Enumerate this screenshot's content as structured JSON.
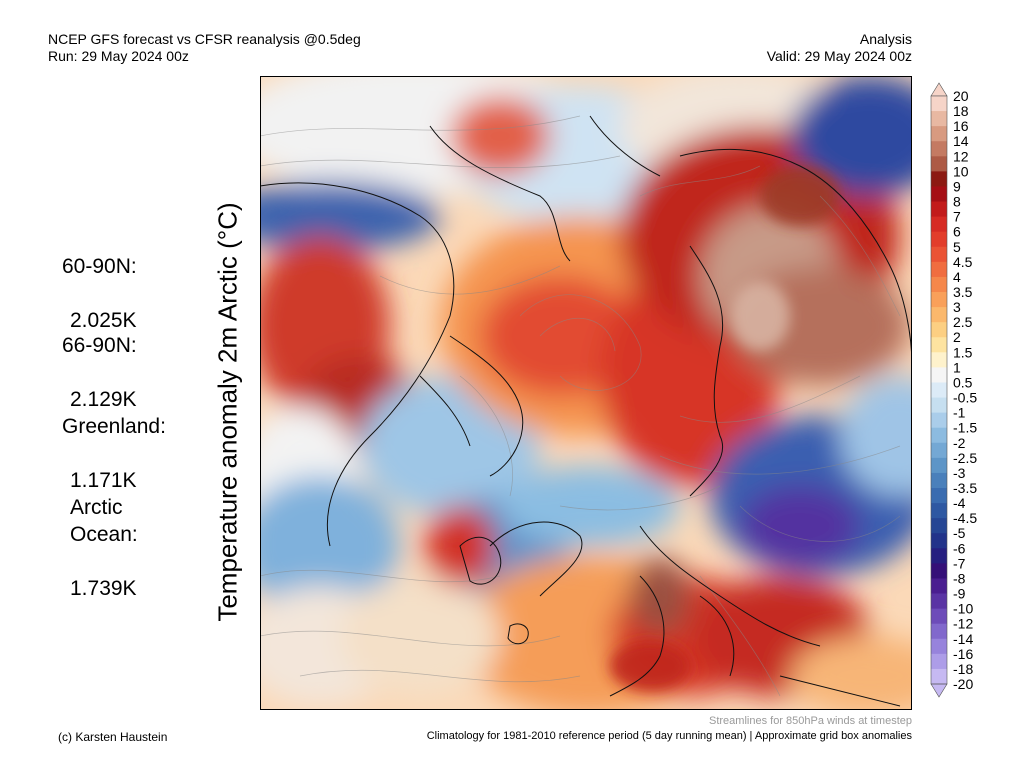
{
  "header": {
    "title_left": "NCEP GFS forecast vs CFSR reanalysis @0.5deg",
    "run": "Run: 29 May 2024 00z",
    "mode": "Analysis",
    "valid": "Valid: 29 May 2024 00z"
  },
  "stats": [
    {
      "label": "60-90N:",
      "value": "2.025K"
    },
    {
      "label": "66-90N:",
      "value": "2.129K"
    },
    {
      "label": "Greenland:",
      "value": "1.171K"
    },
    {
      "label": "Arctic\nOcean:",
      "value": "1.739K"
    }
  ],
  "axis_label": "Temperature anomaly 2m Arctic (°C)",
  "colorbar": {
    "ticks": [
      "20",
      "18",
      "16",
      "14",
      "12",
      "10",
      "9",
      "8",
      "7",
      "6",
      "5",
      "4.5",
      "4",
      "3.5",
      "3",
      "2.5",
      "2",
      "1.5",
      "1",
      "0.5",
      "-0.5",
      "-1",
      "-1.5",
      "-2",
      "-2.5",
      "-3",
      "-3.5",
      "-4",
      "-4.5",
      "-5",
      "-6",
      "-7",
      "-8",
      "-9",
      "-10",
      "-12",
      "-14",
      "-16",
      "-18",
      "-20"
    ],
    "colors": [
      "#f6d4c8",
      "#e8b8a2",
      "#d89a80",
      "#c47a62",
      "#ad5a45",
      "#8c1a12",
      "#a50f15",
      "#c21b1b",
      "#d62b24",
      "#e23d2b",
      "#ea5335",
      "#f06d40",
      "#f5874b",
      "#f9a05a",
      "#fbb86c",
      "#fccf82",
      "#fde3a0",
      "#fef2cc",
      "#f5f5f5",
      "#dcebf7",
      "#c6dff0",
      "#aacdea",
      "#8cbbe0",
      "#74a8d4",
      "#5d95c7",
      "#4a80bb",
      "#3a6cb0",
      "#2e58a2",
      "#264694",
      "#22338a",
      "#261f80",
      "#351078",
      "#4a1e90",
      "#5a34a4",
      "#6d4cb9",
      "#8168cc",
      "#9783dc",
      "#ad9de8",
      "#c6b9f2"
    ]
  },
  "footer": {
    "credit": "(c) Karsten Haustein",
    "note": "Streamlines for 850hPa winds at timestep",
    "climatology": "Climatology for 1981-2010 reference period (5 day running mean) | Approximate grid box anomalies"
  }
}
